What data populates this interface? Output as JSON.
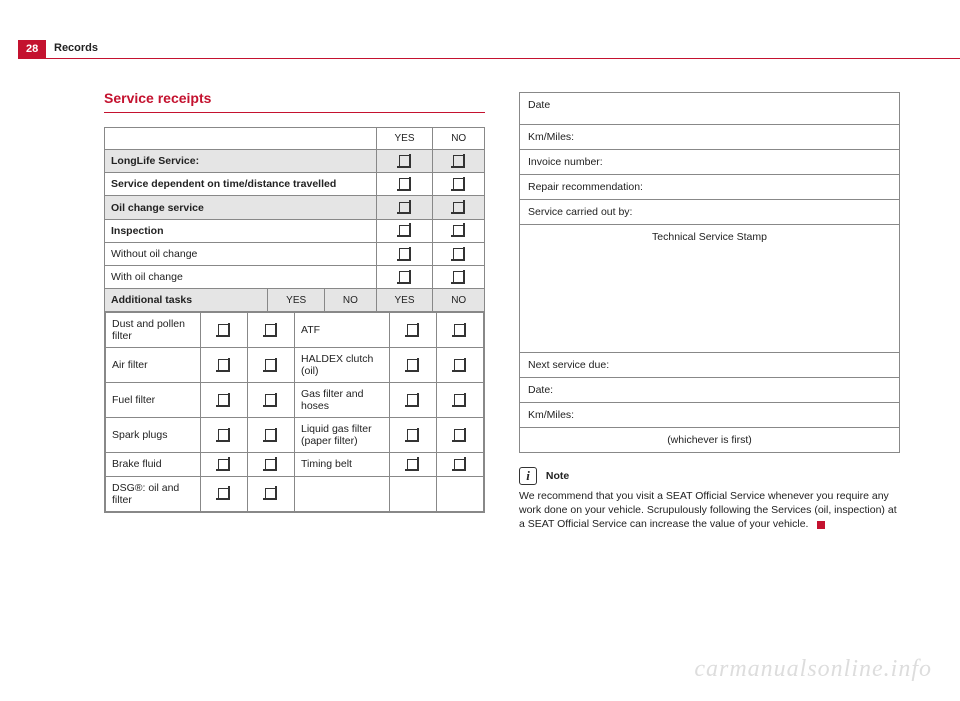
{
  "page_number": "28",
  "chapter": "Records",
  "section_title": "Service receipts",
  "headers": {
    "yes": "YES",
    "no": "NO"
  },
  "service_rows": [
    {
      "label": "LongLife Service:",
      "bold": true,
      "shaded": true
    },
    {
      "label": "Service dependent on time/distance travelled",
      "bold": true,
      "shaded": false
    },
    {
      "label": "Oil change service",
      "bold": true,
      "shaded": true
    },
    {
      "label": "Inspection",
      "bold": true,
      "shaded": false
    },
    {
      "label": "Without oil change",
      "bold": false,
      "shaded": false
    },
    {
      "label": "With oil change",
      "bold": false,
      "shaded": false
    }
  ],
  "additional_tasks_label": "Additional tasks",
  "tasks_left": [
    "Dust and pollen filter",
    "Air filter",
    "Fuel filter",
    "Spark plugs",
    "Brake fluid",
    "DSG®: oil and filter"
  ],
  "tasks_right": [
    "ATF",
    "HALDEX clutch (oil)",
    "Gas filter and hoses",
    "Liquid gas filter (paper filter)",
    "Timing belt"
  ],
  "right_fields": {
    "date": "Date",
    "km": "Km/Miles:",
    "invoice": "Invoice number:",
    "repair": "Repair recommendation:",
    "carried_out": "Service carried out by:",
    "stamp": "Technical Service Stamp",
    "next_due": "Next service due:",
    "date2": "Date:",
    "km2": "Km/Miles:",
    "whichever": "(whichever is first)"
  },
  "note": {
    "title": "Note",
    "body": "We recommend that you visit a SEAT Official Service whenever you require any work done on your vehicle. Scrupulously following the Services (oil, inspection) at a SEAT Official Service can increase the value of your vehicle."
  },
  "watermark": "carmanualsonline.info"
}
